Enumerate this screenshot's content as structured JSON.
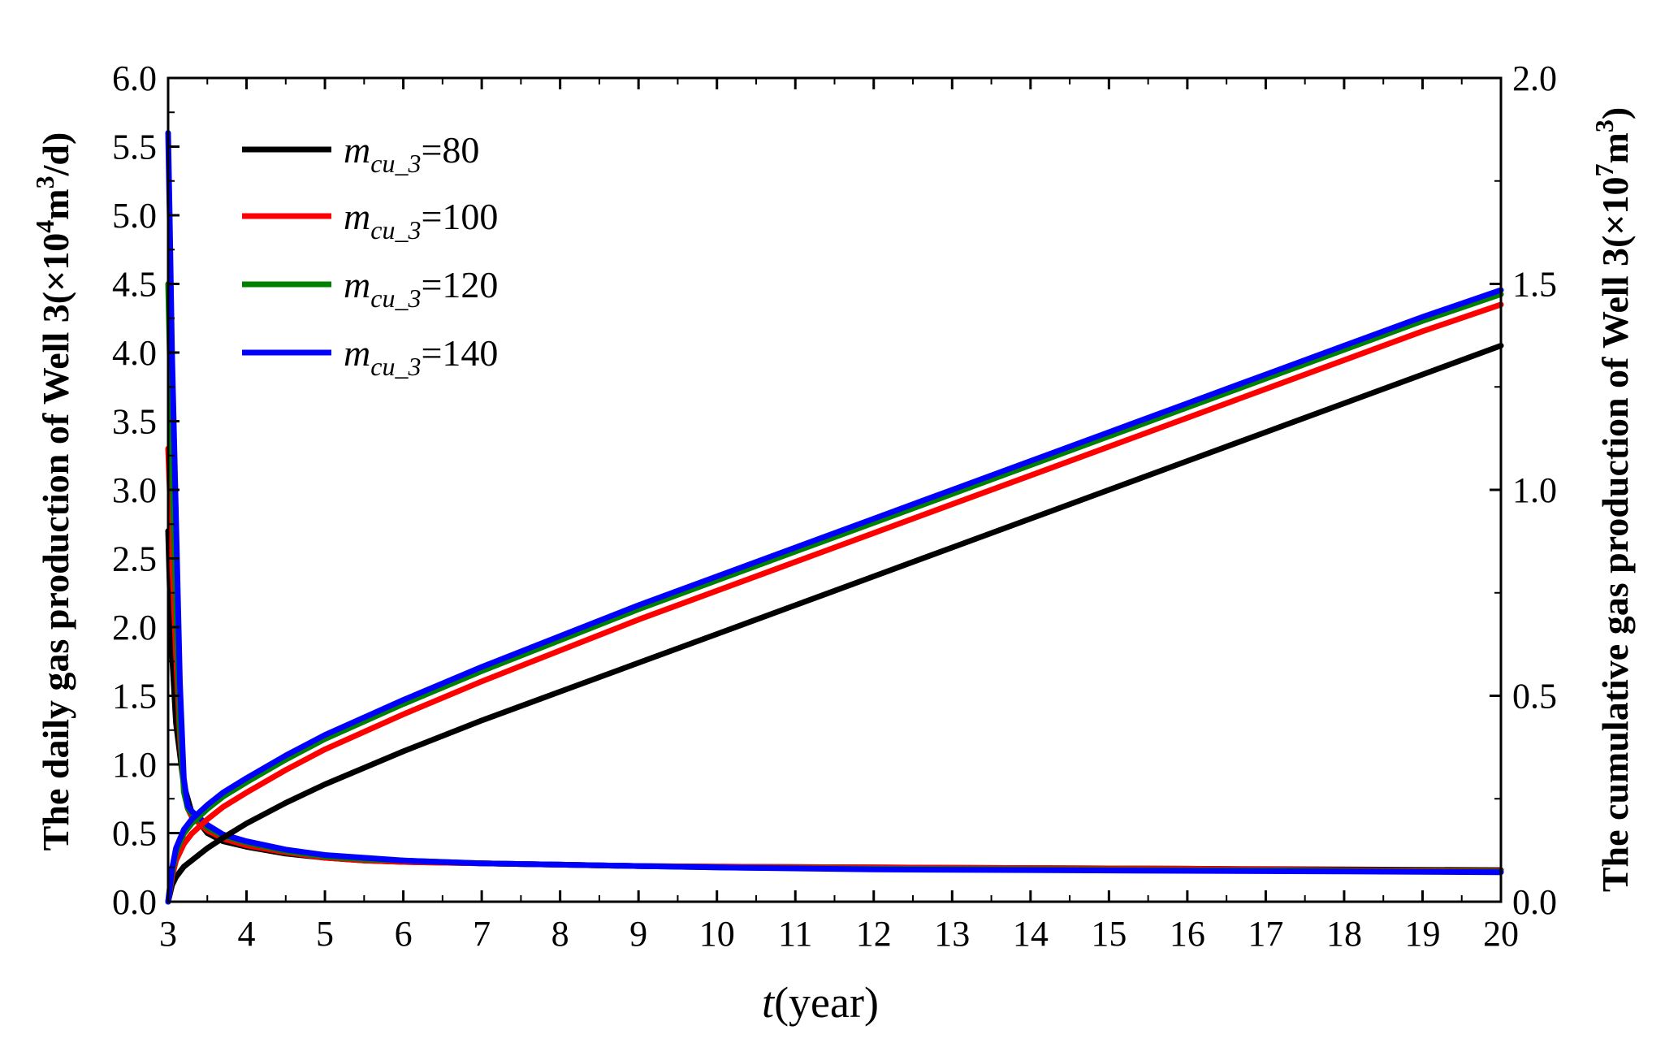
{
  "chart_data": {
    "type": "line",
    "dual_axis": true,
    "xlabel": "t(year)",
    "xlabel_var": "t",
    "xlabel_unit": "(year)",
    "ylabel_left": "The daily gas production of Well 3(×10⁴m³/d)",
    "ylabel_left_parts": [
      "The daily gas production of Well 3(×10",
      "4",
      "m",
      "3",
      "/d)"
    ],
    "ylabel_right": "The cumulative gas production of Well 3(×10⁷m³)",
    "ylabel_right_parts": [
      "The cumulative gas production of Well 3(×10",
      "7",
      "m",
      "3",
      ")"
    ],
    "xlim": [
      3,
      20
    ],
    "ylim_left": [
      0,
      6
    ],
    "ylim_right": [
      0,
      2
    ],
    "xticks": [
      "3",
      "4",
      "5",
      "6",
      "7",
      "8",
      "9",
      "10",
      "11",
      "12",
      "13",
      "14",
      "15",
      "16",
      "17",
      "18",
      "19",
      "20"
    ],
    "yticks_left": [
      "0.0",
      "0.5",
      "1.0",
      "1.5",
      "2.0",
      "2.5",
      "3.0",
      "3.5",
      "4.0",
      "4.5",
      "5.0",
      "5.5",
      "6.0"
    ],
    "yticks_right": [
      "0.0",
      "0.5",
      "1.0",
      "1.5",
      "2.0"
    ],
    "legend_position": "top-left",
    "legend": [
      {
        "base": "m",
        "sub": "cu_3",
        "value": "=80",
        "color": "#000000"
      },
      {
        "base": "m",
        "sub": "cu_3",
        "value": "=100",
        "color": "#ff0000"
      },
      {
        "base": "m",
        "sub": "cu_3",
        "value": "=120",
        "color": "#008000"
      },
      {
        "base": "m",
        "sub": "cu_3",
        "value": "=140",
        "color": "#0000ff"
      }
    ],
    "series": [
      {
        "name": "m_cu_3=80 daily",
        "axis": "left",
        "color": "#000000",
        "x": [
          3.0,
          3.02,
          3.05,
          3.1,
          3.2,
          3.3,
          3.5,
          3.7,
          4,
          4.5,
          5,
          5.5,
          6,
          7,
          8,
          9,
          10,
          12,
          14,
          16,
          18,
          20
        ],
        "y": [
          2.7,
          2.3,
          1.8,
          1.3,
          0.85,
          0.65,
          0.5,
          0.44,
          0.4,
          0.35,
          0.32,
          0.3,
          0.29,
          0.28,
          0.27,
          0.26,
          0.255,
          0.25,
          0.245,
          0.24,
          0.235,
          0.23
        ]
      },
      {
        "name": "m_cu_3=100 daily",
        "axis": "left",
        "color": "#ff0000",
        "x": [
          3.0,
          3.02,
          3.05,
          3.1,
          3.15,
          3.2,
          3.25,
          3.3,
          3.5,
          3.7,
          4,
          4.5,
          5,
          5.5,
          6,
          7,
          8,
          9,
          10,
          12,
          14,
          16,
          18,
          20
        ],
        "y": [
          3.3,
          3.0,
          2.5,
          1.8,
          1.2,
          0.85,
          0.68,
          0.62,
          0.52,
          0.46,
          0.41,
          0.36,
          0.32,
          0.3,
          0.29,
          0.28,
          0.27,
          0.26,
          0.255,
          0.25,
          0.245,
          0.24,
          0.23,
          0.225
        ]
      },
      {
        "name": "m_cu_3=120 daily",
        "axis": "left",
        "color": "#008000",
        "x": [
          3.0,
          3.02,
          3.05,
          3.1,
          3.15,
          3.2,
          3.25,
          3.3,
          3.5,
          3.7,
          4,
          4.5,
          5,
          5.5,
          6,
          7,
          8,
          9,
          10,
          12,
          14,
          16,
          18,
          20
        ],
        "y": [
          4.5,
          4.0,
          3.2,
          2.2,
          1.3,
          0.8,
          0.68,
          0.64,
          0.54,
          0.48,
          0.43,
          0.37,
          0.33,
          0.31,
          0.3,
          0.28,
          0.27,
          0.26,
          0.25,
          0.24,
          0.235,
          0.23,
          0.225,
          0.22
        ]
      },
      {
        "name": "m_cu_3=140 daily",
        "axis": "left",
        "color": "#0000ff",
        "x": [
          3.0,
          3.02,
          3.05,
          3.1,
          3.15,
          3.2,
          3.25,
          3.3,
          3.5,
          3.7,
          4,
          4.5,
          5,
          5.5,
          6,
          7,
          8,
          9,
          10,
          12,
          14,
          16,
          18,
          20
        ],
        "y": [
          5.6,
          5.0,
          4.0,
          2.8,
          1.6,
          0.9,
          0.7,
          0.66,
          0.56,
          0.49,
          0.44,
          0.38,
          0.34,
          0.32,
          0.3,
          0.28,
          0.27,
          0.26,
          0.25,
          0.235,
          0.23,
          0.225,
          0.22,
          0.215
        ]
      },
      {
        "name": "m_cu_3=80 cumulative",
        "axis": "right",
        "color": "#000000",
        "x": [
          3.0,
          3.05,
          3.1,
          3.2,
          3.3,
          3.5,
          3.7,
          4,
          4.5,
          5,
          6,
          7,
          8,
          9,
          10,
          11,
          12,
          13,
          14,
          15,
          16,
          17,
          18,
          19,
          20
        ],
        "y": [
          0.0,
          0.04,
          0.06,
          0.085,
          0.1,
          0.13,
          0.155,
          0.19,
          0.24,
          0.285,
          0.365,
          0.44,
          0.51,
          0.58,
          0.65,
          0.72,
          0.79,
          0.86,
          0.93,
          1.0,
          1.07,
          1.14,
          1.21,
          1.28,
          1.35
        ]
      },
      {
        "name": "m_cu_3=100 cumulative",
        "axis": "right",
        "color": "#ff0000",
        "x": [
          3.0,
          3.05,
          3.1,
          3.2,
          3.3,
          3.5,
          3.7,
          4,
          4.5,
          5,
          6,
          7,
          8,
          9,
          10,
          11,
          12,
          13,
          14,
          15,
          16,
          17,
          18,
          19,
          20
        ],
        "y": [
          0.0,
          0.06,
          0.1,
          0.14,
          0.165,
          0.2,
          0.23,
          0.265,
          0.32,
          0.37,
          0.455,
          0.535,
          0.61,
          0.685,
          0.755,
          0.825,
          0.895,
          0.965,
          1.035,
          1.105,
          1.175,
          1.245,
          1.315,
          1.385,
          1.45
        ]
      },
      {
        "name": "m_cu_3=120 cumulative",
        "axis": "right",
        "color": "#008000",
        "x": [
          3.0,
          3.05,
          3.1,
          3.2,
          3.3,
          3.5,
          3.7,
          4,
          4.5,
          5,
          6,
          7,
          8,
          9,
          10,
          11,
          12,
          13,
          14,
          15,
          16,
          17,
          18,
          19,
          20
        ],
        "y": [
          0.0,
          0.07,
          0.12,
          0.165,
          0.19,
          0.225,
          0.255,
          0.29,
          0.345,
          0.395,
          0.48,
          0.56,
          0.635,
          0.71,
          0.78,
          0.85,
          0.92,
          0.99,
          1.06,
          1.13,
          1.2,
          1.27,
          1.34,
          1.41,
          1.475
        ]
      },
      {
        "name": "m_cu_3=140 cumulative",
        "axis": "right",
        "color": "#0000ff",
        "x": [
          3.0,
          3.05,
          3.1,
          3.2,
          3.3,
          3.5,
          3.7,
          4,
          4.5,
          5,
          6,
          7,
          8,
          9,
          10,
          11,
          12,
          13,
          14,
          15,
          16,
          17,
          18,
          19,
          20
        ],
        "y": [
          0.0,
          0.08,
          0.13,
          0.175,
          0.2,
          0.235,
          0.265,
          0.3,
          0.355,
          0.405,
          0.49,
          0.57,
          0.645,
          0.72,
          0.79,
          0.86,
          0.93,
          1.0,
          1.07,
          1.14,
          1.21,
          1.28,
          1.35,
          1.42,
          1.485
        ]
      }
    ]
  }
}
